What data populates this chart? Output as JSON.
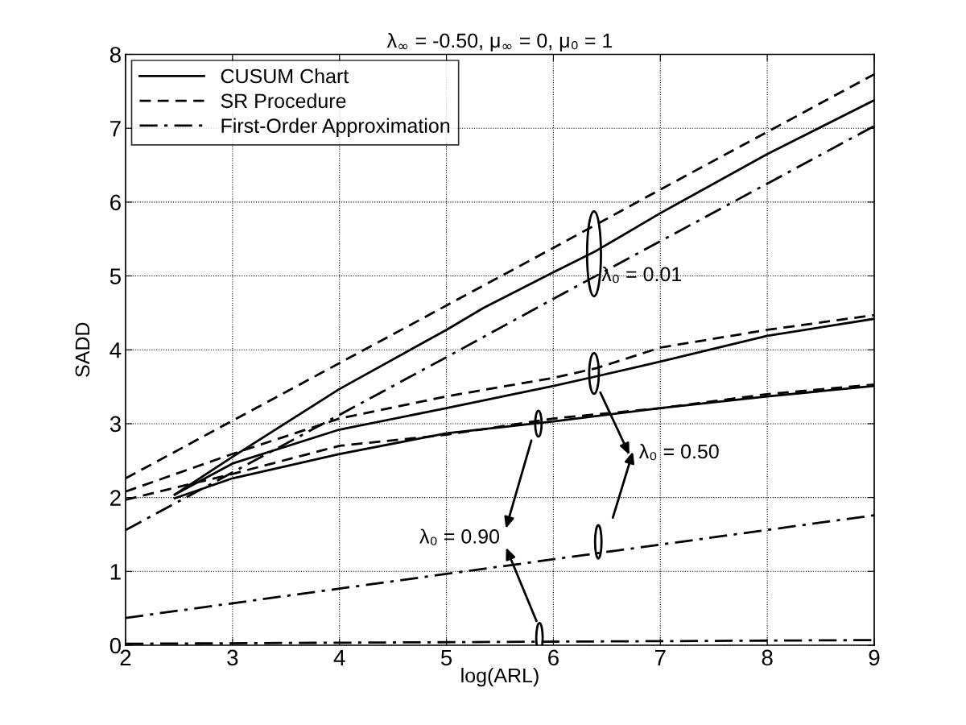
{
  "chart_data": {
    "type": "line",
    "title": "λ$_{∞}$ = -0.50, μ$_{∞}$ = 0, μ₀ = 1",
    "xlabel": "log(ARL)",
    "ylabel": "SADD",
    "xlim": [
      2,
      9
    ],
    "ylim": [
      0,
      8
    ],
    "xticks": [
      2,
      3,
      4,
      5,
      6,
      7,
      8,
      9
    ],
    "yticks": [
      0,
      1,
      2,
      3,
      4,
      5,
      6,
      7,
      8
    ],
    "grid": true,
    "legend": "top left",
    "marker": "none",
    "series": [
      {
        "name": "CUSUM Chart",
        "color": "#000000",
        "line_style": "solid",
        "x": [
          2.46,
          3,
          4,
          5,
          5.35,
          6,
          6.4,
          7,
          8,
          9
        ],
        "values": [
          2.04,
          2.55,
          3.47,
          4.27,
          4.57,
          5.05,
          5.34,
          5.85,
          6.65,
          7.38
        ]
      },
      {
        "name": "SR Procedure",
        "color": "#000000",
        "line_style": "dashed",
        "x": [
          2,
          3,
          4,
          5,
          6,
          7,
          8,
          9
        ],
        "values": [
          2.26,
          3.04,
          3.82,
          4.6,
          5.38,
          6.17,
          6.95,
          7.73
        ]
      },
      {
        "name": "First-Order Approximation",
        "color": "#000000",
        "line_style": "dashdot",
        "x": [
          2,
          3,
          4,
          5,
          6,
          7,
          8,
          9
        ],
        "values": [
          1.56,
          2.34,
          3.12,
          3.9,
          4.69,
          5.47,
          6.25,
          7.03
        ]
      },
      {
        "color": "#000000",
        "line_style": "solid",
        "x": [
          2.46,
          3,
          4,
          5,
          6,
          6.4,
          7,
          8,
          9
        ],
        "values": [
          2.04,
          2.46,
          2.92,
          3.21,
          3.51,
          3.64,
          3.84,
          4.19,
          4.42
        ]
      },
      {
        "color": "#000000",
        "line_style": "dashed",
        "x": [
          2,
          3,
          4,
          5,
          6,
          6.4,
          7,
          8,
          9
        ],
        "values": [
          2.08,
          2.59,
          3.07,
          3.37,
          3.62,
          3.75,
          4.03,
          4.27,
          4.47
        ]
      },
      {
        "color": "#000000",
        "line_style": "dashdot",
        "x": [
          2,
          9
        ],
        "values": [
          0.37,
          1.76
        ]
      },
      {
        "color": "#000000",
        "line_style": "solid",
        "x": [
          2.46,
          3,
          4,
          5,
          6,
          7,
          8,
          9
        ],
        "values": [
          1.99,
          2.26,
          2.59,
          2.87,
          3.03,
          3.21,
          3.37,
          3.51
        ]
      },
      {
        "color": "#000000",
        "line_style": "dashed",
        "x": [
          2,
          3,
          4,
          5,
          6,
          7,
          8,
          9
        ],
        "values": [
          1.97,
          2.32,
          2.7,
          2.85,
          3.07,
          3.21,
          3.4,
          3.53
        ]
      },
      {
        "color": "#000000",
        "line_style": "dashdot",
        "x": [
          2,
          9
        ],
        "values": [
          0.02,
          0.07
        ]
      }
    ],
    "annotations": [
      "λ₀ = 0.01",
      "λ₀ = 0.50",
      "λ₀ = 0.90"
    ]
  }
}
